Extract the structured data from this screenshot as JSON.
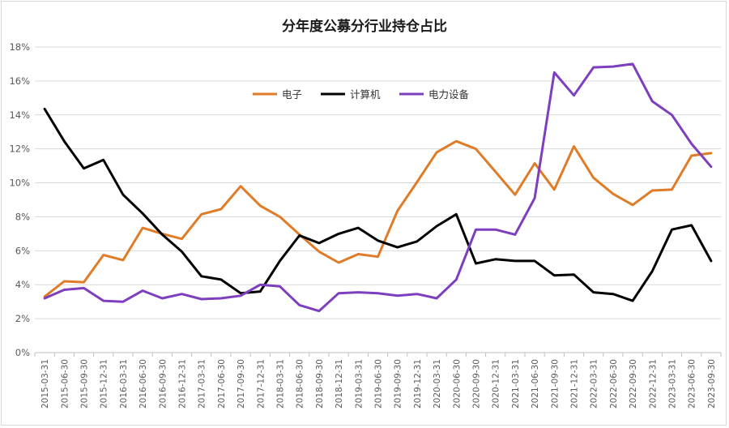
{
  "chart_data": {
    "type": "line",
    "title": "分年度公募分行业持仓占比",
    "xlabel": "",
    "ylabel": "",
    "ylim": [
      0,
      18
    ],
    "yticks": [
      0,
      2,
      4,
      6,
      8,
      10,
      12,
      14,
      16,
      18
    ],
    "ytick_labels": [
      "0%",
      "2%",
      "4%",
      "6%",
      "8%",
      "10%",
      "12%",
      "14%",
      "16%",
      "18%"
    ],
    "grid": "horizontal",
    "legend_position": "top",
    "categories": [
      "2015-03-31",
      "2015-06-30",
      "2015-09-30",
      "2015-12-31",
      "2016-03-31",
      "2016-06-30",
      "2016-09-30",
      "2016-12-31",
      "2017-03-31",
      "2017-06-30",
      "2017-09-30",
      "2017-12-31",
      "2018-03-31",
      "2018-06-30",
      "2018-09-30",
      "2018-12-31",
      "2019-03-31",
      "2019-06-30",
      "2019-09-30",
      "2019-12-31",
      "2020-03-31",
      "2020-06-30",
      "2020-09-30",
      "2020-12-31",
      "2021-03-31",
      "2021-06-30",
      "2021-09-30",
      "2021-12-31",
      "2022-03-31",
      "2022-06-30",
      "2022-09-30",
      "2022-12-31",
      "2023-03-31",
      "2023-06-30",
      "2023-09-30"
    ],
    "series": [
      {
        "name": "电子",
        "color": "#E07B28",
        "values": [
          3.3,
          4.2,
          4.15,
          5.75,
          5.45,
          7.35,
          7.0,
          6.7,
          8.15,
          8.45,
          9.8,
          8.65,
          8.0,
          6.95,
          5.95,
          5.3,
          5.8,
          5.65,
          8.35,
          10.05,
          11.8,
          12.45,
          12.0,
          10.65,
          9.3,
          11.15,
          9.6,
          12.15,
          10.3,
          9.35,
          8.7,
          9.55,
          9.6,
          11.6,
          11.75
        ]
      },
      {
        "name": "计算机",
        "color": "#000000",
        "values": [
          14.35,
          12.45,
          10.85,
          11.35,
          9.3,
          8.2,
          6.95,
          5.95,
          4.5,
          4.3,
          3.5,
          3.6,
          5.4,
          6.9,
          6.45,
          7.0,
          7.35,
          6.6,
          6.2,
          6.55,
          7.45,
          8.15,
          5.25,
          5.5,
          5.4,
          5.4,
          4.55,
          4.6,
          3.55,
          3.45,
          3.05,
          4.8,
          7.25,
          7.5,
          5.4
        ]
      },
      {
        "name": "电力设备",
        "color": "#7E3FBF",
        "values": [
          3.2,
          3.7,
          3.8,
          3.05,
          3.0,
          3.65,
          3.2,
          3.45,
          3.15,
          3.2,
          3.35,
          4.0,
          3.9,
          2.8,
          2.45,
          3.5,
          3.55,
          3.5,
          3.35,
          3.45,
          3.2,
          4.3,
          7.25,
          7.25,
          6.95,
          9.1,
          16.5,
          15.15,
          16.8,
          16.85,
          17.0,
          14.8,
          14.0,
          12.3,
          10.95
        ]
      }
    ]
  }
}
